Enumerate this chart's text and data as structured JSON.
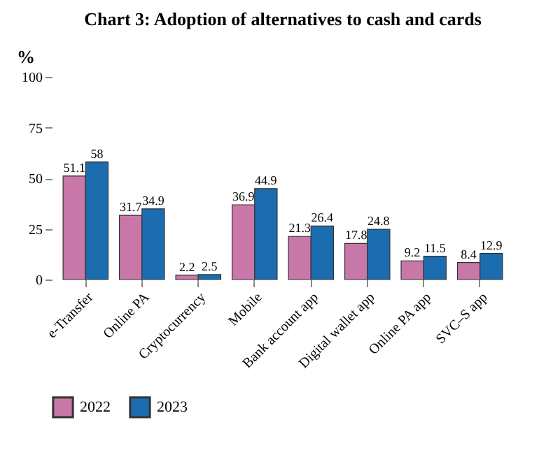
{
  "chart_data": {
    "type": "bar",
    "title": "Chart 3: Adoption of alternatives to cash and cards",
    "ylabel": "%",
    "categories": [
      "e-Transfer",
      "Online PA",
      "Cryptocurrency",
      "Mobile",
      "Bank account app",
      "Digital wallet app",
      "Online PA app",
      "SVC–S app"
    ],
    "series": [
      {
        "name": "2022",
        "color": "#c878a8",
        "values": [
          51.1,
          31.7,
          2.2,
          36.9,
          21.3,
          17.8,
          9.2,
          8.4
        ]
      },
      {
        "name": "2023",
        "color": "#1b6db0",
        "values": [
          58,
          34.9,
          2.5,
          44.9,
          26.4,
          24.8,
          11.5,
          12.9
        ]
      }
    ],
    "ylim": [
      0,
      100
    ],
    "yticks": [
      0,
      25,
      50,
      75,
      100
    ],
    "grid": false,
    "legend": "bottom",
    "data_labels": true
  }
}
